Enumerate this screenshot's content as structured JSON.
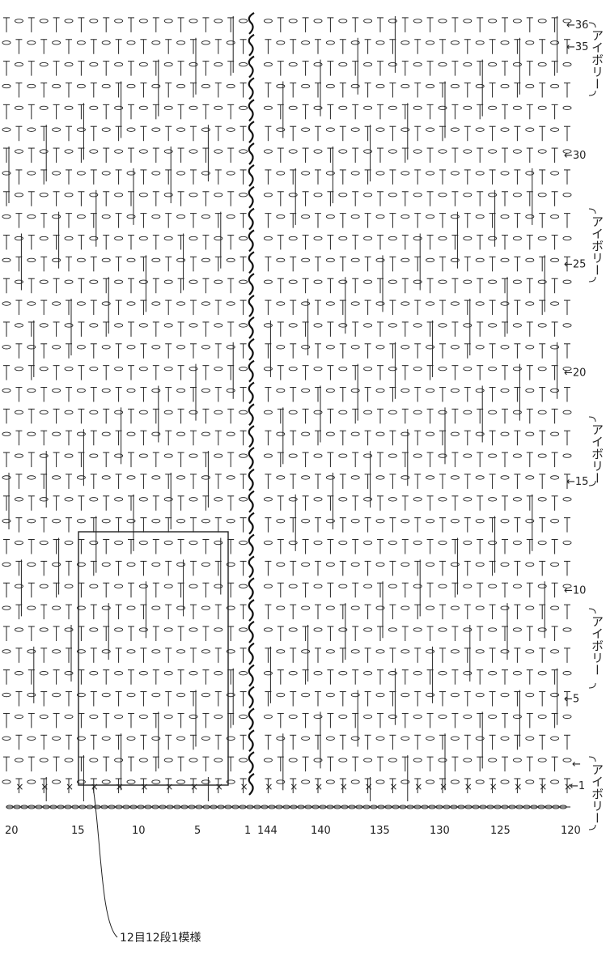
{
  "row_labels": [
    "←36",
    "←35",
    "←30",
    "←25",
    "←20",
    "←15",
    "←10",
    "←5",
    "←",
    "←1"
  ],
  "stitch_labels": [
    "20",
    "15",
    "10",
    "5",
    "1",
    "144",
    "140",
    "135",
    "130",
    "125",
    "120"
  ],
  "color_labels": [
    "アイボリー",
    "アイボリー",
    "アイボリー",
    "アイボリー",
    "アイボリー"
  ],
  "caption": "12目12段1模様"
}
